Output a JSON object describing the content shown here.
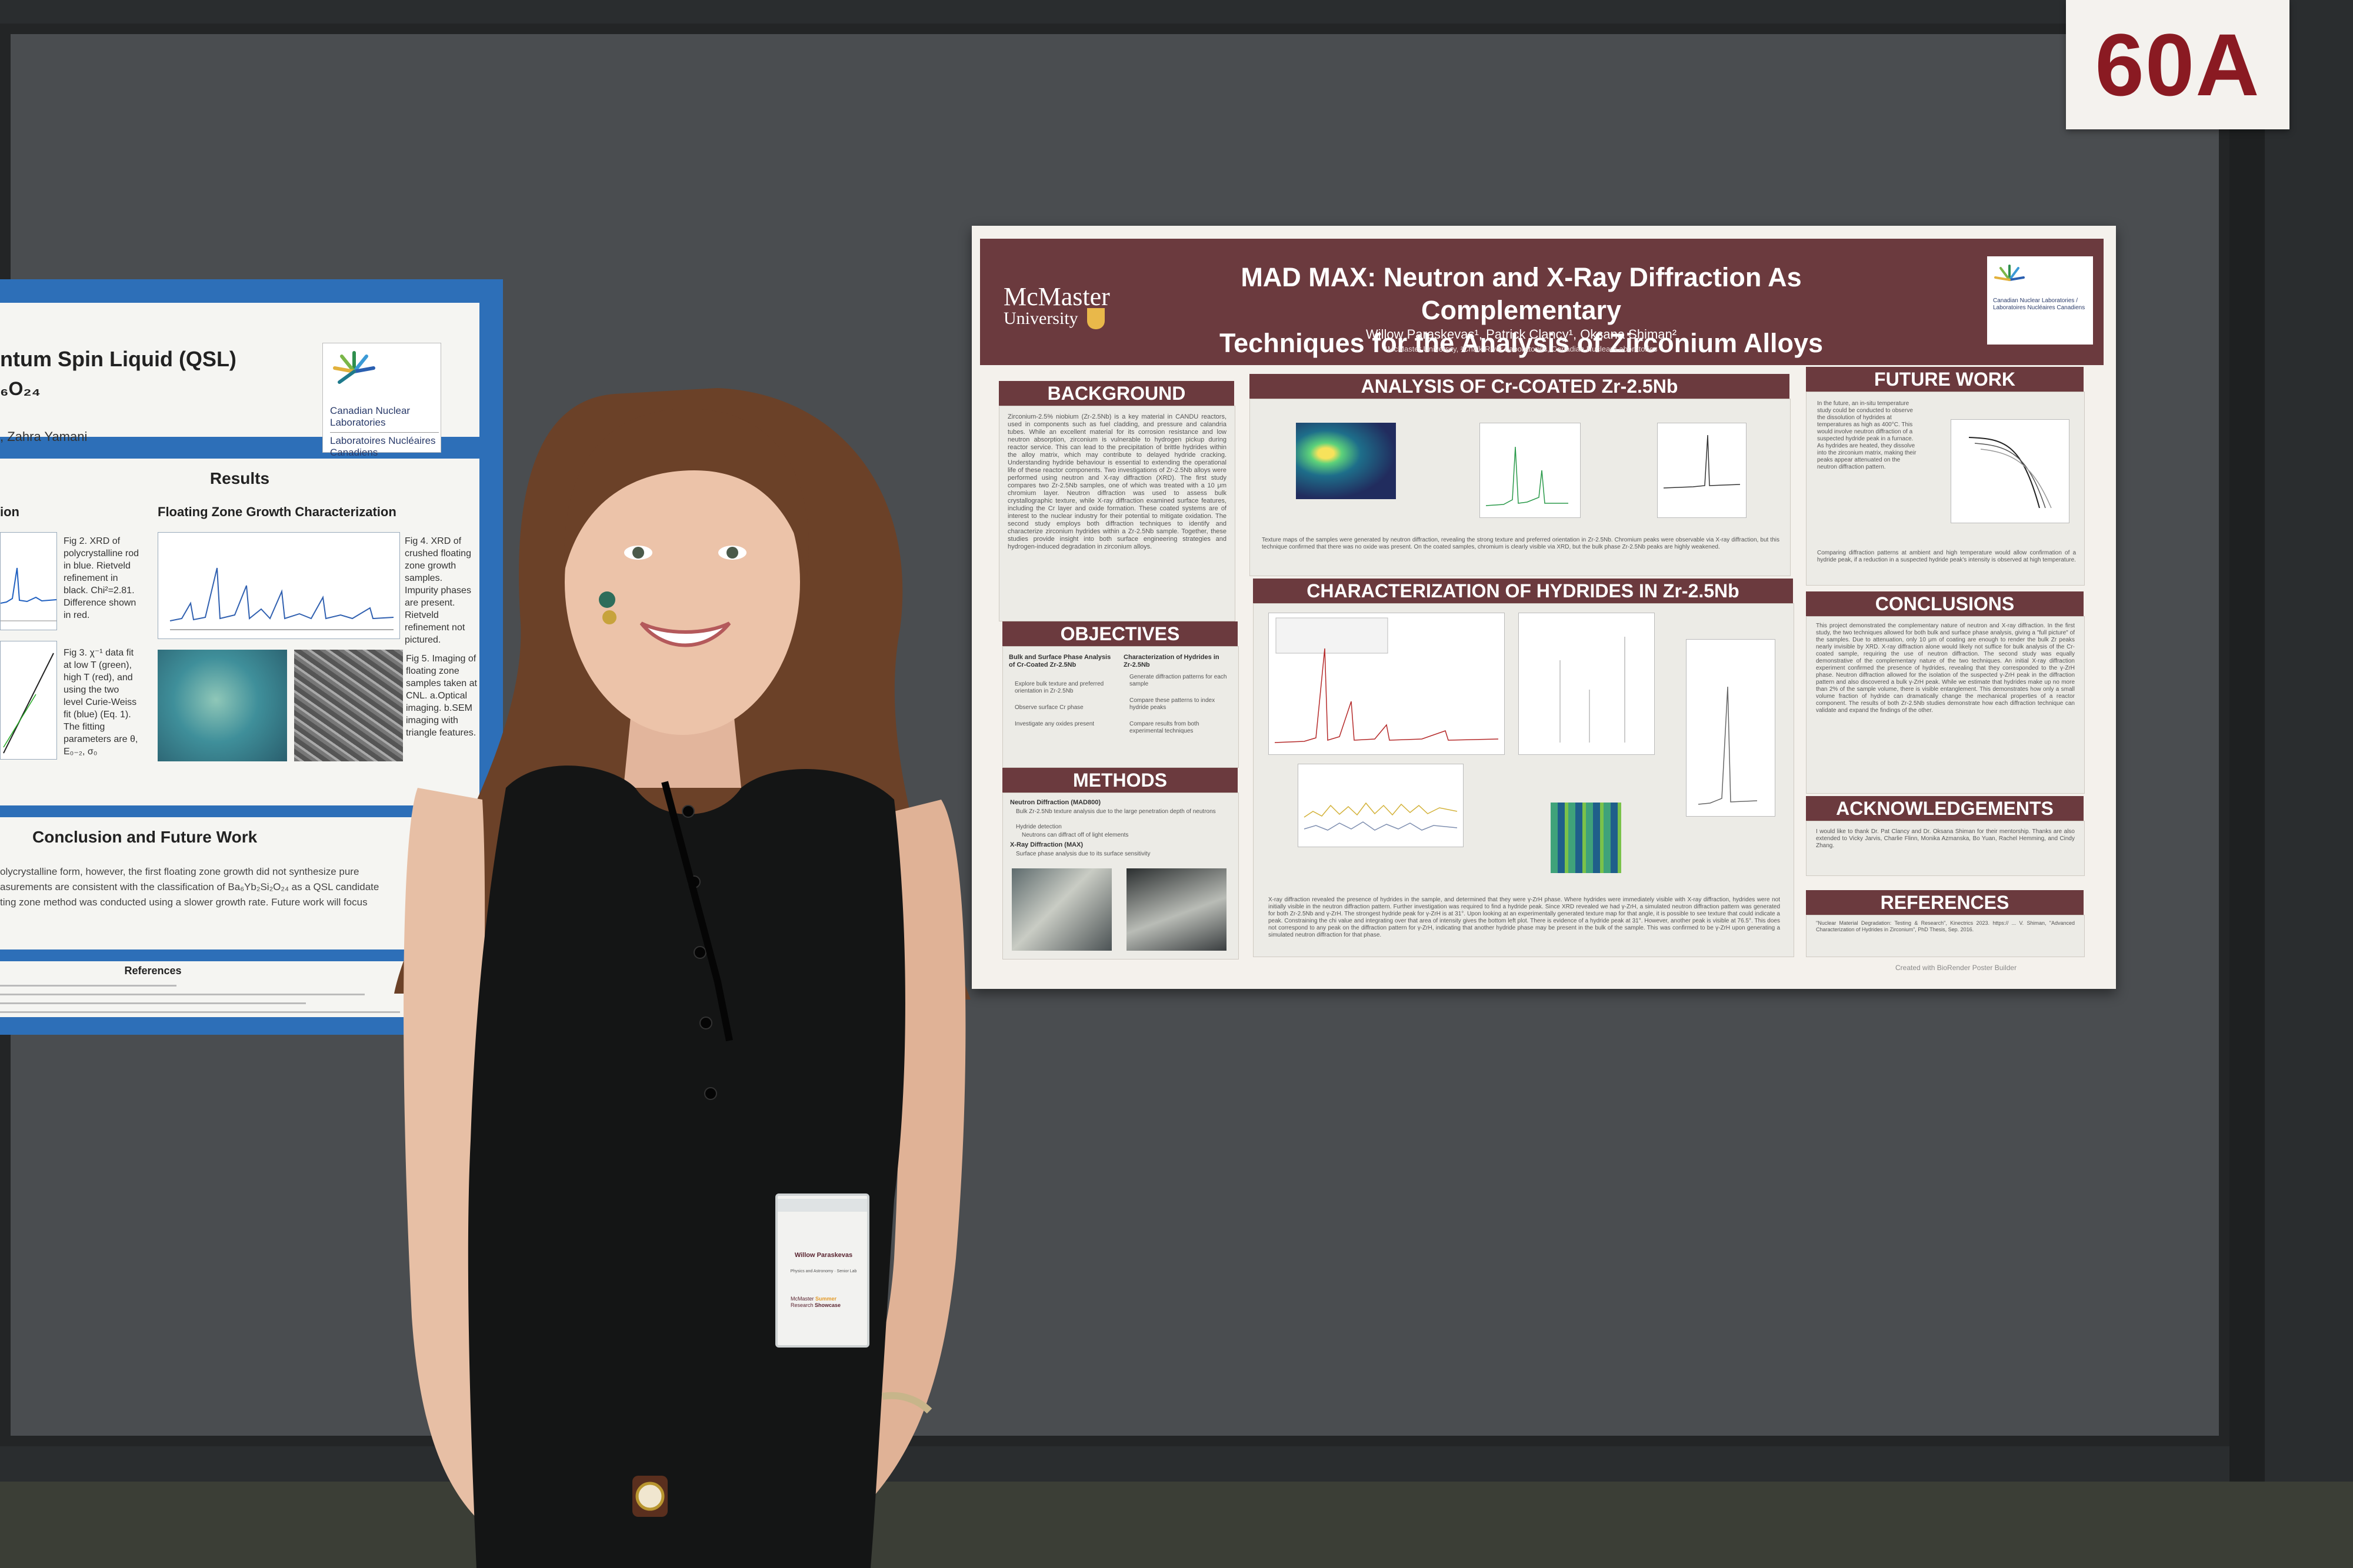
{
  "booth": {
    "number": "60A"
  },
  "left_poster": {
    "title_fragment": "ntum Spin Liquid (QSL)",
    "formula_fragment": "₆O₂₄",
    "author_fragment": ", Zahra Yamani",
    "logo": {
      "line1": "Canadian Nuclear",
      "line2": "Laboratories",
      "line3": "Laboratoires Nucléaires",
      "line4": "Canadiens"
    },
    "results": {
      "heading": "Results",
      "col1_heading": "ion",
      "col2_heading": "Floating Zone Growth Characterization",
      "fig2": "Fig 2. XRD of polycrystalline rod in blue. Rietveld refinement in black. Chi²=2.81. Difference shown in red.",
      "fig3": "Fig 3. χ⁻¹ data fit at low T (green), high T (red), and using the two level Curie-Weiss fit (blue) (Eq. 1). The fitting parameters are θ, E₀₋₂, σ₀",
      "fig4": "Fig 4. XRD of crushed floating zone growth samples. Impurity phases are present. Rietveld refinement not pictured.",
      "fig5": "Fig 5. Imaging of floating zone samples taken at CNL. a.Optical imaging. b.SEM imaging with triangle features."
    },
    "conclusion": {
      "heading": "Conclusion and Future Work",
      "line1": "olycrystalline form, however, the first floating zone growth did not synthesize pure",
      "line2": "asurements are consistent with the classification of Ba₆Yb₂Si₂O₂₄ as a QSL candidate",
      "line3": "ting zone method was conducted using a slower growth rate. Future work will focus"
    },
    "references_heading": "References"
  },
  "poster": {
    "university_line1": "McMaster",
    "university_line2": "University",
    "title_line1": "MAD MAX: Neutron and X-Ray Diffraction As Complementary",
    "title_line2": "Techniques for the Analysis of Zirconium Alloys",
    "authors": "Willow Paraskevas¹, Patrick Clancy¹, Oksana Shiman²",
    "affiliations": "¹McMaster University, ²Chalk River Laboratories, Canadian Nuclear Laboratories",
    "cnl_logo_text": "Canadian Nuclear Laboratories / Laboratoires Nucléaires Canadiens",
    "sections": {
      "background": {
        "heading": "BACKGROUND",
        "text": "Zirconium-2.5% niobium (Zr-2.5Nb) is a key material in CANDU reactors, used in components such as fuel cladding, and pressure and calandria tubes. While an excellent material for its corrosion resistance and low neutron absorption, zirconium is vulnerable to hydrogen pickup during reactor service. This can lead to the precipitation of brittle hydrides within the alloy matrix, which may contribute to delayed hydride cracking. Understanding hydride behaviour is essential to extending the operational life of these reactor components. Two investigations of Zr-2.5Nb alloys were performed using neutron and X-ray diffraction (XRD). The first study compares two Zr-2.5Nb samples, one of which was treated with a 10 μm chromium layer. Neutron diffraction was used to assess bulk crystallographic texture, while X-ray diffraction examined surface features, including the Cr layer and oxide formation. These coated systems are of interest to the nuclear industry for their potential to mitigate oxidation. The second study employs both diffraction techniques to identify and characterize zirconium hydrides within a Zr-2.5Nb sample. Together, these studies provide insight into both surface engineering strategies and hydrogen-induced degradation in zirconium alloys."
      },
      "objectives": {
        "heading": "OBJECTIVES",
        "col1_title": "Bulk and Surface Phase Analysis of Cr-Coated Zr-2.5Nb",
        "col1_items": [
          "Explore bulk texture and preferred orientation in Zr-2.5Nb",
          "Observe surface Cr phase",
          "Investigate any oxides present"
        ],
        "col2_title": "Characterization of Hydrides in Zr-2.5Nb",
        "col2_items": [
          "Generate diffraction patterns for each sample",
          "Compare these patterns to index hydride peaks",
          "Compare results from both experimental techniques"
        ]
      },
      "methods": {
        "heading": "METHODS",
        "item1_title": "Neutron Diffraction (MAD800)",
        "item1_points": [
          "Bulk Zr-2.5Nb texture analysis due to the large penetration depth of neutrons",
          "Hydride detection",
          "Neutrons can diffract off of light elements"
        ],
        "item2_title": "X-Ray Diffraction (MAX)",
        "item2_points": [
          "Surface phase analysis due to its surface sensitivity"
        ]
      },
      "analysis": {
        "heading": "ANALYSIS OF Cr-COATED Zr-2.5Nb",
        "caption": "Texture maps of the samples were generated by neutron diffraction, revealing the strong texture and preferred orientation in Zr-2.5Nb. Chromium peaks were observable via X-ray diffraction, but this technique confirmed that there was no oxide was present. On the coated samples, chromium is clearly visible via XRD, but the bulk phase Zr-2.5Nb peaks are highly weakened."
      },
      "hydrides": {
        "heading": "CHARACTERIZATION OF HYDRIDES IN Zr-2.5Nb",
        "caption": "X-ray diffraction revealed the presence of hydrides in the sample, and determined that they were γ-ZrH phase. Where hydrides were immediately visible with X-ray diffraction, hydrides were not initially visible in the neutron diffraction pattern. Further investigation was required to find a hydride peak. Since XRD revealed we had γ-ZrH, a simulated neutron diffraction pattern was generated for both Zr-2.5Nb and γ-ZrH. The strongest hydride peak for γ-ZrH is at 31°. Upon looking at an experimentally generated texture map for that angle, it is possible to see texture that could indicate a peak. Constraining the chi value and integrating over that area of intensity gives the bottom left plot. There is evidence of a hydride peak at 31°. However, another peak is visible at 76.5°. This does not correspond to any peak on the diffraction pattern for γ-ZrH, indicating that another hydride phase may be present in the bulk of the sample. This was confirmed to be γ-ZrH upon generating a simulated neutron diffraction for that phase."
      },
      "future_work": {
        "heading": "FUTURE WORK",
        "text1": "In the future, an in-situ temperature study could be conducted to observe the dissolution of hydrides at temperatures as high as 400°C. This would involve neutron diffraction of a suspected hydride peak in a furnace. As hydrides are heated, they dissolve into the zirconium matrix, making their peaks appear attenuated on the neutron diffraction pattern.",
        "text2": "Comparing diffraction patterns at ambient and high temperature would allow confirmation of a hydride peak, if a reduction in a suspected hydride peak's intensity is observed at high temperature."
      },
      "conclusions": {
        "heading": "CONCLUSIONS",
        "text": "This project demonstrated the complementary nature of neutron and X-ray diffraction. In the first study, the two techniques allowed for both bulk and surface phase analysis, giving a \"full picture\" of the samples. Due to attenuation, only 10 μm of coating are enough to render the bulk Zr peaks nearly invisible by XRD. X-ray diffraction alone would likely not suffice for bulk analysis of the Cr-coated sample, requiring the use of neutron diffraction. The second study was equally demonstrative of the complementary nature of the two techniques. An initial X-ray diffraction experiment confirmed the presence of hydrides, revealing that they corresponded to the γ-ZrH phase. Neutron diffraction allowed for the isolation of the suspected γ-ZrH peak in the diffraction pattern and also discovered a bulk γ-ZrH peak. While we estimate that hydrides make up no more than 2% of the sample volume, there is visible entanglement. This demonstrates how only a small volume fraction of hydride can dramatically change the mechanical properties of a reactor component. The results of both Zr-2.5Nb studies demonstrate how each diffraction technique can validate and expand the findings of the other."
      },
      "acknowledgements": {
        "heading": "ACKNOWLEDGEMENTS",
        "text": "I would like to thank Dr. Pat Clancy and Dr. Oksana Shiman for their mentorship. Thanks are also extended to Vicky Jarvis, Charlie Flinn, Monika Azmanska, Bo Yuan, Rachel Hemming, and Cindy Zhang."
      },
      "references": {
        "heading": "REFERENCES",
        "text": "\"Nuclear Material Degradation: Testing & Research\", Kinectrics 2023. https:// ... V. Shiman, \"Advanced Characterization of Hydrides in Zirconium\", PhD Thesis, Sep. 2016."
      }
    },
    "footer": "Created with BioRender Poster Builder"
  },
  "badge": {
    "name": "Willow Paraskevas",
    "role": "Physics and Astronomy · Senior Lab",
    "event_line1": "McMaster",
    "event_line2": "Summer",
    "event_line3": "Research",
    "event_line4": "Showcase"
  },
  "colors": {
    "poster_maroon": "#6b3a3e",
    "booth_number_red": "#8a1a22",
    "left_poster_blue": "#2d6fb8",
    "board_gray": "#4a4d50"
  }
}
